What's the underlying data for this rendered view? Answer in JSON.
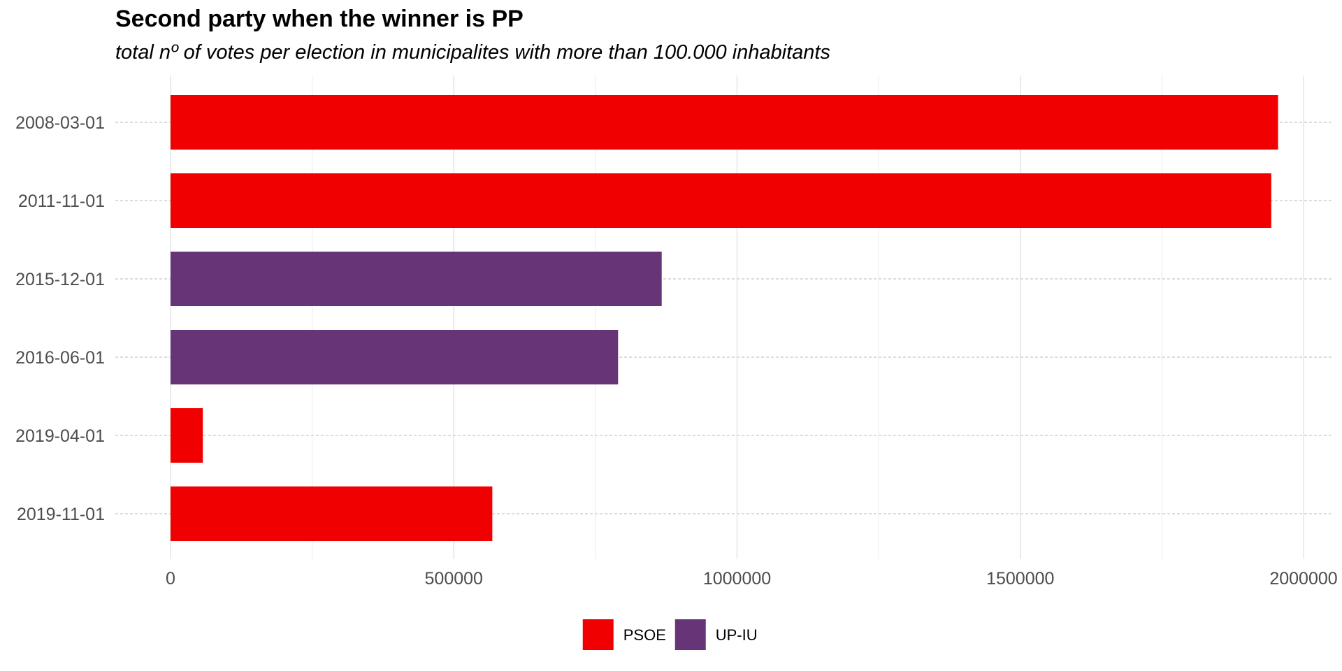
{
  "chart_data": {
    "type": "bar",
    "orientation": "horizontal",
    "title": "Second party when the winner is PP",
    "subtitle": "total nº of votes per election in municipalites with more than 100.000 inhabitants",
    "xlabel": "",
    "ylabel": "",
    "categories": [
      "2008-03-01",
      "2011-11-01",
      "2015-12-01",
      "2016-06-01",
      "2019-04-01",
      "2019-11-01"
    ],
    "values": [
      1955000,
      1943000,
      867000,
      790000,
      57000,
      568000
    ],
    "bar_party": [
      "PSOE",
      "PSOE",
      "UP-IU",
      "UP-IU",
      "PSOE",
      "PSOE"
    ],
    "xlim": [
      0,
      2000000
    ],
    "x_ticks": [
      0,
      500000,
      1000000,
      1500000,
      2000000
    ],
    "x_tick_labels": [
      "0",
      "500000",
      "1000000",
      "1500000",
      "2000000"
    ],
    "grid": true,
    "legend_position": "bottom",
    "legend": [
      {
        "name": "PSOE",
        "color": "#f00000"
      },
      {
        "name": "UP-IU",
        "color": "#663477"
      }
    ]
  }
}
